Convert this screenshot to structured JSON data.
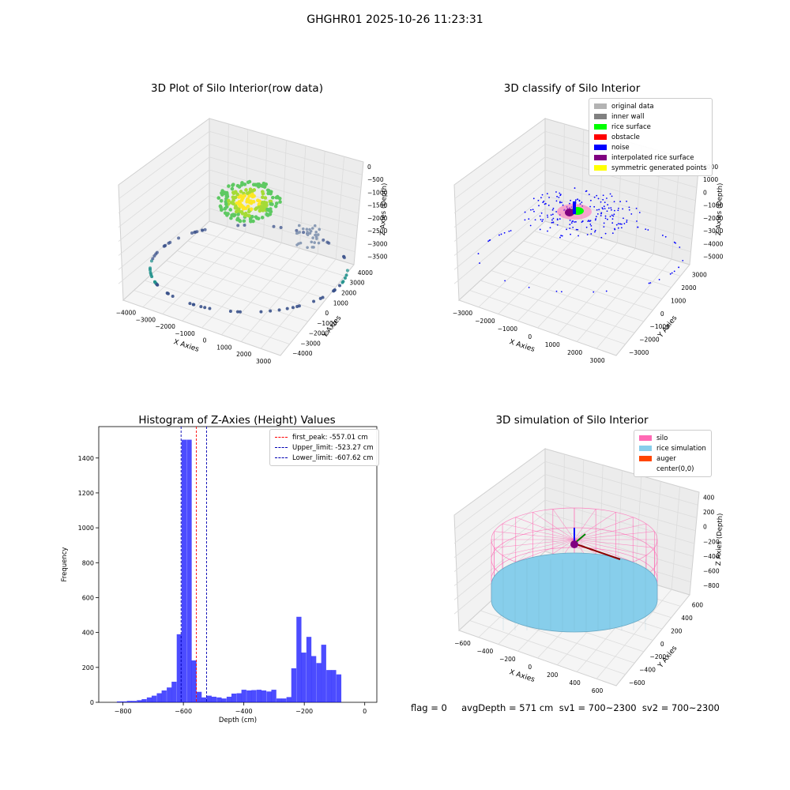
{
  "suptitle": "GHGHR01 2025-10-26 11:23:31",
  "footer": "flag = 0     avgDepth = 571 cm  sv1 = 700~2300  sv2 = 700~2300",
  "chart_data": [
    {
      "type": "scatter",
      "title": "3D Plot of Silo Interior(row data)",
      "xlabel": "X Axies",
      "ylabel": "Y Axies",
      "zlabel": "Z Axies (Depth)",
      "x_ticks": [
        "−4000",
        "−3000",
        "−2000",
        "−1000",
        "0",
        "1000",
        "2000",
        "3000"
      ],
      "y_ticks": [
        "−4000",
        "−3000",
        "−2000",
        "−1000",
        "0",
        "1000",
        "2000",
        "3000",
        "4000"
      ],
      "z_ticks": [
        "0",
        "−500",
        "−1000",
        "−1500",
        "−2000",
        "−2500",
        "−3000",
        "−3500"
      ],
      "colormap": "viridis",
      "xlim": [
        -4000,
        3500
      ],
      "ylim": [
        -4000,
        4000
      ],
      "zlim": [
        -3800,
        0
      ]
    },
    {
      "type": "scatter",
      "title": "3D classify of Silo Interior",
      "xlabel": "X Axies",
      "ylabel": "Y Axies",
      "zlabel": "Z Axies (Depth)",
      "x_ticks": [
        "−3000",
        "−2000",
        "−1000",
        "0",
        "1000",
        "2000",
        "3000"
      ],
      "y_ticks": [
        "−3000",
        "−2000",
        "−1000",
        "0",
        "1000",
        "2000",
        "3000"
      ],
      "z_ticks": [
        "2000",
        "1000",
        "0",
        "−1000",
        "−2000",
        "−3000",
        "−4000",
        "−5000"
      ],
      "legend": [
        {
          "label": "original data",
          "color": "#b3b3b3"
        },
        {
          "label": "inner wall",
          "color": "#808080"
        },
        {
          "label": "rice surface",
          "color": "#00ff00"
        },
        {
          "label": "obstacle",
          "color": "#ff0000"
        },
        {
          "label": "noise",
          "color": "#0000ff"
        },
        {
          "label": "interpolated rice surface",
          "color": "#800080"
        },
        {
          "label": "symmetric generated points",
          "color": "#ffff00"
        }
      ]
    },
    {
      "type": "bar",
      "title": "Histogram of Z-Axies (Height) Values",
      "xlabel": "Depth (cm)",
      "ylabel": "Frequency",
      "xlim": [
        -880,
        40
      ],
      "ylim": [
        0,
        1580
      ],
      "x_ticks": [
        -800,
        -600,
        -400,
        -200,
        0
      ],
      "y_ticks": [
        0,
        200,
        400,
        600,
        800,
        1000,
        1200,
        1400
      ],
      "bin_width": 16.5,
      "bins_start": [
        -820,
        -804,
        -787,
        -771,
        -754,
        -738,
        -721,
        -705,
        -688,
        -672,
        -655,
        -639,
        -622,
        -606,
        -589,
        -573,
        -556,
        -540,
        -523,
        -507,
        -490,
        -474,
        -457,
        -441,
        -424,
        -408,
        -391,
        -375,
        -358,
        -342,
        -325,
        -309,
        -292,
        -276,
        -259,
        -243,
        -226,
        -210,
        -193,
        -177,
        -160,
        -144,
        -127,
        -111,
        -94,
        -78,
        -61,
        -45,
        -28,
        -12
      ],
      "counts": [
        5,
        5,
        8,
        8,
        12,
        18,
        28,
        38,
        52,
        68,
        85,
        118,
        390,
        1505,
        1505,
        240,
        60,
        28,
        38,
        32,
        28,
        22,
        32,
        50,
        52,
        72,
        68,
        70,
        72,
        68,
        62,
        72,
        22,
        22,
        30,
        195,
        490,
        285,
        375,
        265,
        225,
        330,
        185,
        185,
        160,
        0,
        0,
        0,
        0,
        0
      ],
      "bar_color": "#0000ff",
      "bar_alpha": 0.7,
      "vlines": [
        {
          "label": "first_peak: -557.01 cm",
          "x": -557.01,
          "color": "#ff0000"
        },
        {
          "label": "Upper_limit: -523.27 cm",
          "x": -523.27,
          "color": "#0000b3"
        },
        {
          "label": "Lower_limit: -607.62 cm",
          "x": -607.62,
          "color": "#0000b3"
        }
      ]
    },
    {
      "type": "scatter",
      "title": "3D simulation of Silo Interior",
      "xlabel": "X Axies",
      "ylabel": "Y Axies",
      "zlabel": "Z Axies (Depth)",
      "x_ticks": [
        "−600",
        "−400",
        "−200",
        "0",
        "200",
        "400",
        "600"
      ],
      "y_ticks": [
        "−600",
        "−400",
        "−200",
        "0",
        "200",
        "400",
        "600"
      ],
      "z_ticks": [
        "400",
        "200",
        "0",
        "−200",
        "−400",
        "−600",
        "−800"
      ],
      "legend": [
        {
          "label": "silo",
          "color": "#ff69b4"
        },
        {
          "label": "rice simulation",
          "color": "#87ceeb"
        },
        {
          "label": "auger",
          "color": "#ff4500"
        },
        {
          "label": "center(0,0)",
          "color": ""
        }
      ]
    }
  ]
}
